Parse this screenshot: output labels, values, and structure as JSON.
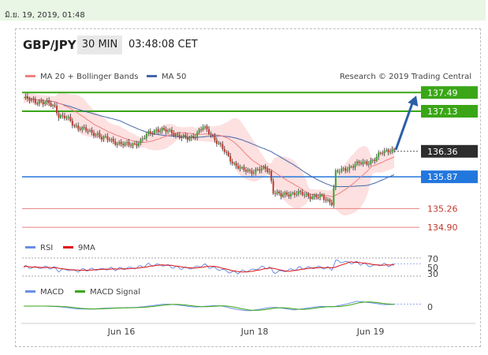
{
  "date_bar": "มิ.ย. 19, 2019, 01:48",
  "header": {
    "pair": "GBP/JPY",
    "timeframe": "30 MIN",
    "time": "03:48:08 CET"
  },
  "credit": "Research © 2019 Trading Central",
  "colors": {
    "up": "#3aa12c",
    "down": "#c0392b",
    "resistance": "#3aa617",
    "support": "#2277dd",
    "sr_red": "#e88080",
    "ma20": "#f08080",
    "ma50": "#4466aa",
    "bands_fill": "#fde0e0",
    "arrow": "#2b5fa8",
    "rsi": "#6b8fe6",
    "rsi9": "#e01010",
    "macd": "#6b8fe6",
    "signal": "#3aa617"
  },
  "chart_data": [
    {
      "type": "candlestick",
      "title": "GBP/JPY",
      "legend": [
        {
          "name": "MA 20 + Bollinger Bands",
          "color": "#f08080"
        },
        {
          "name": "MA 50",
          "color": "#4466aa"
        }
      ],
      "ylim": [
        134.72,
        137.6
      ],
      "x_ticks": [
        "Jun 16",
        "Jun 18",
        "Jun 19"
      ],
      "levels": [
        {
          "value": "137.49",
          "kind": "resistance"
        },
        {
          "value": "137.13",
          "kind": "resistance"
        },
        {
          "value": "136.36",
          "kind": "current"
        },
        {
          "value": "135.87",
          "kind": "support"
        },
        {
          "value": "135.26",
          "kind": "minor"
        },
        {
          "value": "134.90",
          "kind": "minor"
        }
      ],
      "close_path": [
        [
          0,
          137.38
        ],
        [
          4,
          137.33
        ],
        [
          8,
          137.32
        ],
        [
          12,
          137.28
        ],
        [
          16,
          137.22
        ],
        [
          18,
          137.05
        ],
        [
          22,
          137.0
        ],
        [
          26,
          136.86
        ],
        [
          30,
          136.8
        ],
        [
          34,
          136.72
        ],
        [
          38,
          136.7
        ],
        [
          40,
          136.62
        ],
        [
          44,
          136.58
        ],
        [
          48,
          136.53
        ],
        [
          52,
          136.48
        ],
        [
          56,
          136.5
        ],
        [
          60,
          136.55
        ],
        [
          64,
          136.7
        ],
        [
          68,
          136.78
        ],
        [
          72,
          136.75
        ],
        [
          76,
          136.74
        ],
        [
          80,
          136.64
        ],
        [
          84,
          136.6
        ],
        [
          88,
          136.68
        ],
        [
          92,
          136.82
        ],
        [
          96,
          136.7
        ],
        [
          100,
          136.5
        ],
        [
          104,
          136.3
        ],
        [
          108,
          136.12
        ],
        [
          112,
          136.0
        ],
        [
          116,
          135.98
        ],
        [
          120,
          136.0
        ],
        [
          124,
          136.02
        ],
        [
          126,
          135.98
        ],
        [
          128,
          135.6
        ],
        [
          132,
          135.5
        ],
        [
          136,
          135.55
        ],
        [
          140,
          135.56
        ],
        [
          144,
          135.52
        ],
        [
          148,
          135.5
        ],
        [
          152,
          135.48
        ],
        [
          156,
          135.42
        ],
        [
          158,
          135.38
        ],
        [
          160,
          135.95
        ],
        [
          164,
          136.0
        ],
        [
          168,
          136.08
        ],
        [
          172,
          136.12
        ],
        [
          176,
          136.15
        ],
        [
          180,
          136.2
        ],
        [
          184,
          136.35
        ],
        [
          188,
          136.4
        ],
        [
          190,
          136.36
        ]
      ]
    },
    {
      "type": "line",
      "legend": [
        {
          "name": "RSI",
          "color": "#6b8fe6"
        },
        {
          "name": "9MA",
          "color": "#e01010"
        }
      ],
      "y_ticks": [
        "70",
        "50",
        "30"
      ]
    },
    {
      "type": "line",
      "legend": [
        {
          "name": "MACD",
          "color": "#6b8fe6"
        },
        {
          "name": "MACD Signal",
          "color": "#3aa617"
        }
      ],
      "y_ticks": [
        "0"
      ]
    }
  ]
}
